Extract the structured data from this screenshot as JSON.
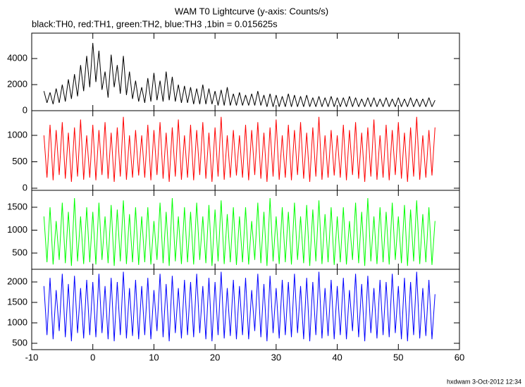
{
  "chart_data": {
    "type": "line",
    "title": "WAM T0 Lightcurve (y-axis: Counts/s)",
    "subtitle": "black:TH0, red:TH1, green:TH2, blue:TH3 ,1bin = 0.015625s",
    "note": "hxdwam  3-Oct-2012 12:34",
    "xlim": [
      -10,
      60
    ],
    "xticks": [
      -10,
      0,
      10,
      20,
      30,
      40,
      50,
      60
    ],
    "x": [
      -8,
      -7.5,
      -7,
      -6.5,
      -6,
      -5.5,
      -5,
      -4.5,
      -4,
      -3.5,
      -3,
      -2.5,
      -2,
      -1.5,
      -1,
      -0.5,
      0,
      0.5,
      1,
      1.5,
      2,
      2.5,
      3,
      3.5,
      4,
      4.5,
      5,
      5.5,
      6,
      6.5,
      7,
      7.5,
      8,
      8.5,
      9,
      9.5,
      10,
      10.5,
      11,
      11.5,
      12,
      12.5,
      13,
      13.5,
      14,
      14.5,
      15,
      15.5,
      16,
      16.5,
      17,
      17.5,
      18,
      18.5,
      19,
      19.5,
      20,
      20.5,
      21,
      21.5,
      22,
      22.5,
      23,
      23.5,
      24,
      24.5,
      25,
      25.5,
      26,
      26.5,
      27,
      27.5,
      28,
      28.5,
      29,
      29.5,
      30,
      30.5,
      31,
      31.5,
      32,
      32.5,
      33,
      33.5,
      34,
      34.5,
      35,
      35.5,
      36,
      36.5,
      37,
      37.5,
      38,
      38.5,
      39,
      39.5,
      40,
      40.5,
      41,
      41.5,
      42,
      42.5,
      43,
      43.5,
      44,
      44.5,
      45,
      45.5,
      46,
      46.5,
      47,
      47.5,
      48,
      48.5,
      49,
      49.5,
      50,
      50.5,
      51,
      51.5,
      52,
      52.5,
      53,
      53.5,
      54,
      54.5,
      55,
      55.5,
      56
    ],
    "panels": [
      {
        "ylim": [
          0,
          5950
        ],
        "yticks": [
          0,
          2000,
          4000
        ],
        "series": [
          {
            "color": "#000000",
            "values": [
              1500,
              600,
              1400,
              500,
              1700,
              600,
              2000,
              700,
              2400,
              900,
              2800,
              1100,
              3500,
              1500,
              4200,
              1800,
              5200,
              2200,
              4600,
              1600,
              3000,
              1000,
              4300,
              1800,
              3500,
              1300,
              4200,
              1200,
              3000,
              900,
              2300,
              700,
              1800,
              600,
              2500,
              700,
              2900,
              800,
              2300,
              700,
              3000,
              800,
              2600,
              700,
              2000,
              600,
              1900,
              600,
              1800,
              500,
              1700,
              500,
              2000,
              500,
              1700,
              500,
              1500,
              400,
              1600,
              400,
              1800,
              400,
              1300,
              400,
              1400,
              400,
              1200,
              400,
              1300,
              400,
              1500,
              400,
              1200,
              300,
              1300,
              300,
              1200,
              300,
              1100,
              300,
              1300,
              300,
              1200,
              300,
              1100,
              300,
              1200,
              300,
              1000,
              300,
              1100,
              300,
              1000,
              300,
              1100,
              300,
              1000,
              300,
              1000,
              300,
              1100,
              300,
              1000,
              300,
              900,
              300,
              1000,
              300,
              1000,
              300,
              900,
              300,
              1000,
              300,
              900,
              300,
              1000,
              300,
              900,
              300,
              1000,
              300,
              900,
              300,
              900,
              300,
              1000,
              300,
              800
            ]
          }
        ]
      },
      {
        "ylim": [
          -40,
          1467
        ],
        "yticks": [
          0,
          500,
          1000
        ],
        "series": [
          {
            "color": "#ff0000",
            "values": [
              1000,
              200,
              1200,
              150,
              1100,
              250,
              1250,
              180,
              1050,
              120,
              1150,
              220,
              1300,
              160,
              1000,
              200,
              1200,
              150,
              1100,
              250,
              1250,
              180,
              1050,
              120,
              1150,
              220,
              1350,
              160,
              1000,
              200,
              1100,
              240,
              1000,
              200,
              1200,
              150,
              1100,
              250,
              1250,
              180,
              1050,
              120,
              1150,
              220,
              1300,
              160,
              1000,
              200,
              1200,
              150,
              1100,
              250,
              1250,
              180,
              1050,
              120,
              1150,
              220,
              1350,
              160,
              1000,
              200,
              1100,
              240,
              1000,
              200,
              1200,
              150,
              1100,
              250,
              1250,
              180,
              1050,
              120,
              1150,
              220,
              1300,
              160,
              1000,
              200,
              1200,
              150,
              1100,
              250,
              1250,
              180,
              1050,
              120,
              1150,
              220,
              1350,
              160,
              1000,
              200,
              1100,
              240,
              1000,
              200,
              1200,
              150,
              1100,
              250,
              1250,
              180,
              1050,
              120,
              1150,
              220,
              1300,
              160,
              1000,
              200,
              1200,
              150,
              1100,
              250,
              1250,
              180,
              1050,
              120,
              1150,
              220,
              1350,
              160,
              1000,
              200,
              1100,
              240,
              1150
            ]
          }
        ]
      },
      {
        "ylim": [
          146,
          1869
        ],
        "yticks": [
          500,
          1000,
          1500
        ],
        "series": [
          {
            "color": "#00ff00",
            "values": [
              1300,
              300,
              1500,
              250,
              1200,
              350,
              1600,
              280,
              1400,
              220,
              1700,
              320,
              1300,
              260,
              1500,
              300,
              1400,
              250,
              1600,
              350,
              1300,
              280,
              1550,
              220,
              1450,
              320,
              1650,
              260,
              1350,
              300,
              1500,
              240,
              1300,
              300,
              1500,
              250,
              1200,
              350,
              1600,
              280,
              1400,
              220,
              1700,
              320,
              1300,
              260,
              1500,
              300,
              1400,
              250,
              1600,
              350,
              1300,
              280,
              1550,
              220,
              1450,
              320,
              1650,
              260,
              1350,
              300,
              1500,
              240,
              1300,
              300,
              1500,
              250,
              1200,
              350,
              1600,
              280,
              1400,
              220,
              1700,
              320,
              1300,
              260,
              1500,
              300,
              1400,
              250,
              1600,
              350,
              1300,
              280,
              1550,
              220,
              1450,
              320,
              1650,
              260,
              1350,
              300,
              1500,
              240,
              1300,
              300,
              1500,
              250,
              1200,
              350,
              1600,
              280,
              1400,
              220,
              1700,
              320,
              1300,
              260,
              1500,
              300,
              1400,
              250,
              1600,
              350,
              1300,
              280,
              1550,
              220,
              1450,
              320,
              1650,
              260,
              1350,
              300,
              1500,
              240,
              1200
            ]
          }
        ]
      },
      {
        "ylim": [
          345,
          2310
        ],
        "yticks": [
          500,
          1000,
          1500,
          2000
        ],
        "series": [
          {
            "color": "#0000ff",
            "values": [
              1900,
              700,
              2100,
              600,
              1800,
              800,
              2200,
              650,
              1950,
              550,
              2150,
              750,
              1850,
              620,
              2050,
              700,
              2000,
              650,
              2200,
              750,
              1900,
              600,
              2100,
              550,
              2000,
              700,
              2250,
              620,
              1850,
              680,
              2050,
              600,
              1900,
              700,
              2100,
              600,
              1800,
              800,
              2200,
              650,
              1950,
              550,
              2150,
              750,
              1850,
              620,
              2050,
              700,
              2000,
              650,
              2200,
              750,
              1900,
              600,
              2100,
              550,
              2000,
              700,
              2250,
              620,
              1850,
              680,
              2050,
              600,
              1900,
              700,
              2100,
              600,
              1800,
              800,
              2200,
              650,
              1950,
              550,
              2150,
              750,
              1850,
              620,
              2050,
              700,
              2000,
              650,
              2200,
              750,
              1900,
              600,
              2100,
              550,
              2000,
              700,
              2250,
              620,
              1850,
              680,
              2050,
              600,
              1900,
              700,
              2100,
              600,
              1800,
              800,
              2200,
              650,
              1950,
              550,
              2150,
              750,
              1850,
              620,
              2050,
              700,
              2000,
              650,
              2200,
              750,
              1900,
              600,
              2100,
              550,
              2000,
              700,
              2250,
              620,
              1850,
              680,
              2050,
              600,
              1700
            ]
          }
        ]
      }
    ]
  }
}
